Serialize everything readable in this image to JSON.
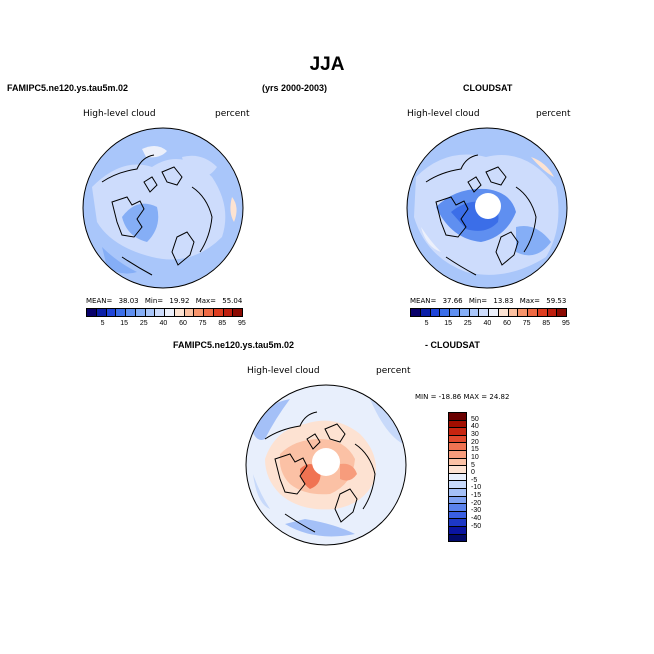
{
  "title": "JJA",
  "header": {
    "left": "FAMIPC5.ne120.ys.tau5m.02",
    "center": "(yrs 2000-2003)",
    "right": "CLOUDSAT"
  },
  "panel1": {
    "var_label": "High-level cloud",
    "unit_label": "percent",
    "stats": {
      "mean_label": "MEAN=",
      "mean": "38.03",
      "min_label": "Min=",
      "min": "19.92",
      "max_label": "Max=",
      "max": "55.04"
    }
  },
  "panel2": {
    "var_label": "High-level cloud",
    "unit_label": "percent",
    "stats": {
      "mean_label": "MEAN=",
      "mean": "37.66",
      "min_label": "Min=",
      "min": "13.83",
      "max_label": "Max=",
      "max": "59.53"
    }
  },
  "colorbar_top": {
    "ticks": [
      "5",
      "15",
      "25",
      "40",
      "60",
      "75",
      "85",
      "95"
    ],
    "colors": [
      "#08006a",
      "#0b1fa8",
      "#1f44d8",
      "#3b6ee8",
      "#5f8ff0",
      "#85aef6",
      "#a9c6fa",
      "#cddcfc",
      "#ecf0fb",
      "#fde3d2",
      "#fbc0a0",
      "#f7946b",
      "#ef6a44",
      "#de3d20",
      "#bf1f0f",
      "#8c0a02"
    ]
  },
  "diff_header": {
    "left": "FAMIPC5.ne120.ys.tau5m.02",
    "right": "- CLOUDSAT"
  },
  "panel3": {
    "var_label": "High-level cloud",
    "unit_label": "percent",
    "min_max": "MIN = -18.86 MAX =  24.82"
  },
  "colorbar_diff": {
    "labels": [
      "50",
      "40",
      "30",
      "20",
      "15",
      "10",
      "5",
      "0",
      "-5",
      "-10",
      "-15",
      "-20",
      "-30",
      "-40",
      "-50"
    ],
    "colors": [
      "#6a0000",
      "#a30e00",
      "#c82510",
      "#e24a2e",
      "#f07352",
      "#f79c7c",
      "#fbc1a5",
      "#fde2d2",
      "#e8effc",
      "#c7d9fa",
      "#a4c0f7",
      "#7fa2f2",
      "#5a82ec",
      "#3a5fe2",
      "#1d38c6",
      "#0a14a0",
      "#020a6a"
    ]
  }
}
